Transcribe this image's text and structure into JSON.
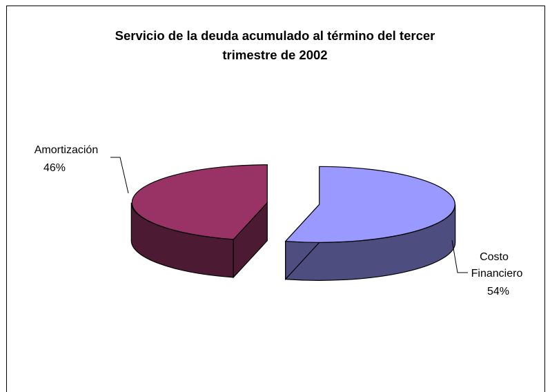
{
  "chart_data": {
    "type": "pie",
    "style": "3d-exploded",
    "title_lines": [
      "Servicio de la deuda acumulado al término del tercer",
      "trimestre de 2002"
    ],
    "slices": [
      {
        "label_lines": [
          "Costo",
          "Financiero"
        ],
        "percent_label": "54%",
        "value": 54,
        "color": "#9999ff",
        "side_color": "#4d4d80"
      },
      {
        "label_lines": [
          "Amortización"
        ],
        "percent_label": "46%",
        "value": 46,
        "color": "#993366",
        "side_color": "#4d1a33"
      }
    ],
    "legend": false
  }
}
